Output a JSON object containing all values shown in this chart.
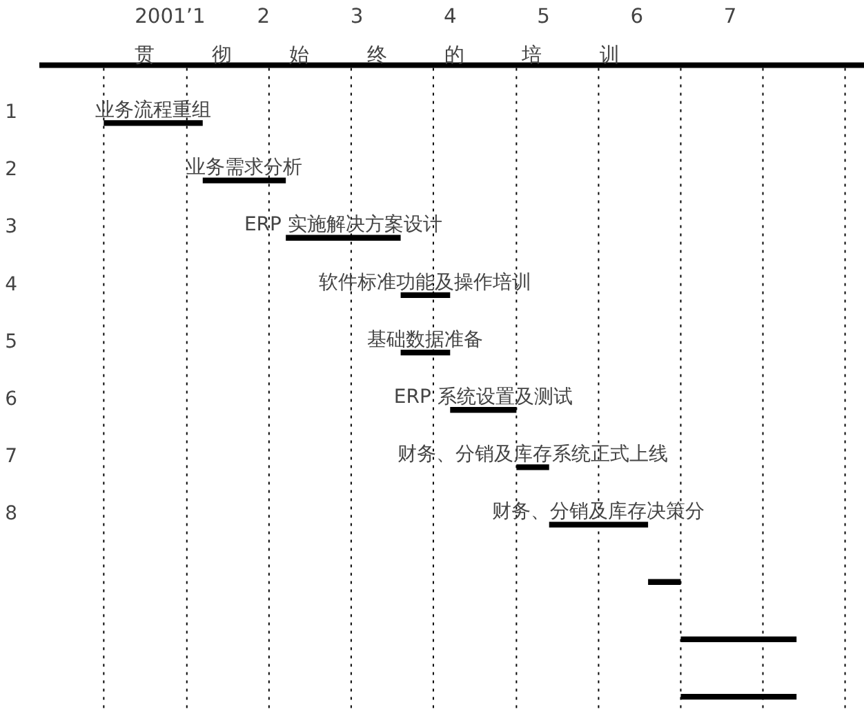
{
  "chart_data": {
    "type": "bar",
    "orientation": "horizontal",
    "subtitle": "贯彻始终的培训",
    "categories": [
      "1",
      "2",
      "3",
      "4",
      "5",
      "6",
      "7",
      "8",
      null,
      null,
      null
    ],
    "base": [
      0.29,
      1.35,
      2.24,
      3.47,
      3.47,
      4.0,
      4.71,
      5.06,
      6.12,
      6.47,
      6.47
    ],
    "values": [
      1.06,
      0.89,
      1.23,
      0.53,
      0.53,
      0.71,
      0.35,
      1.06,
      0.35,
      1.24,
      1.24
    ],
    "color": "#000000",
    "value_labels": [
      "业务流程重组",
      "业务需求分析",
      "ERP 实施解决方案设计",
      "软件标准功能及操作培训",
      "基础数据准备",
      "ERP 系统设置及测试",
      "财务、分销及库存系统正式上线",
      "财务、分销及库存决策分",
      null,
      null,
      null
    ],
    "xlim": [
      -0.4,
      8.44
    ],
    "xticks": [
      {
        "value": 1,
        "label": "2001’1"
      },
      2,
      3,
      4,
      5,
      6,
      7
    ],
    "ref_lines": [
      {
        "axis": "x",
        "value": 0.29,
        "line_style": "dotted"
      },
      {
        "axis": "x",
        "value": 1.18,
        "line_style": "dotted"
      },
      {
        "axis": "x",
        "value": 2.06,
        "line_style": "dotted"
      },
      {
        "axis": "x",
        "value": 2.94,
        "line_style": "dotted"
      },
      {
        "axis": "x",
        "value": 3.82,
        "line_style": "dotted"
      },
      {
        "axis": "x",
        "value": 4.71,
        "line_style": "dotted"
      },
      {
        "axis": "x",
        "value": 5.59,
        "line_style": "dotted"
      },
      {
        "axis": "x",
        "value": 6.47,
        "line_style": "dotted"
      },
      {
        "axis": "x",
        "value": 7.35,
        "line_style": "dotted"
      },
      {
        "axis": "x",
        "value": 8.23,
        "line_style": "dotted"
      }
    ],
    "grid": false
  }
}
